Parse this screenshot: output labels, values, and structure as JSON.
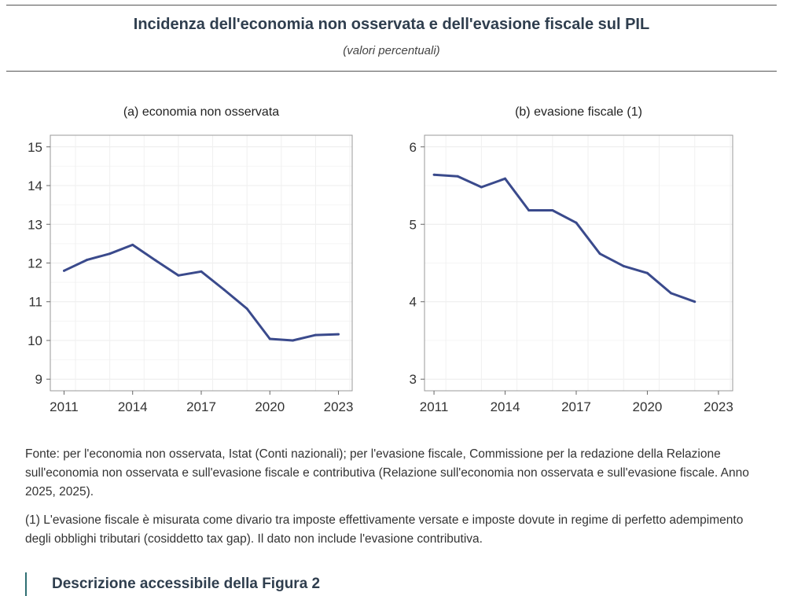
{
  "header": {
    "title": "Incidenza dell'economia non osservata e dell'evasione fiscale sul PIL",
    "subtitle": "(valori percentuali)"
  },
  "chart_data": [
    {
      "type": "line",
      "title": "(a) economia non osservata",
      "xlabel": "",
      "ylabel": "",
      "x": [
        2011,
        2012,
        2013,
        2014,
        2015,
        2016,
        2017,
        2018,
        2019,
        2020,
        2021,
        2022,
        2023
      ],
      "values": [
        11.8,
        12.08,
        12.24,
        12.47,
        12.07,
        11.68,
        11.78,
        11.31,
        10.82,
        10.04,
        10.0,
        10.14,
        10.16
      ],
      "ylim": [
        8.7,
        15.3
      ],
      "xlim": [
        2010.4,
        2023.6
      ],
      "yticks": [
        "9",
        "10",
        "11",
        "12",
        "13",
        "14",
        "15"
      ],
      "xticks": [
        "2011",
        "2014",
        "2017",
        "2020",
        "2023"
      ],
      "color": "#3a4a8c",
      "grid": true
    },
    {
      "type": "line",
      "title": "(b) evasione fiscale (1)",
      "xlabel": "",
      "ylabel": "",
      "x": [
        2011,
        2012,
        2013,
        2014,
        2015,
        2016,
        2017,
        2018,
        2019,
        2020,
        2021,
        2022
      ],
      "values": [
        5.64,
        5.62,
        5.48,
        5.59,
        5.18,
        5.18,
        5.02,
        4.62,
        4.46,
        4.37,
        4.11,
        4.0
      ],
      "ylim": [
        2.85,
        6.15
      ],
      "xlim": [
        2010.6,
        2023.6
      ],
      "yticks": [
        "3",
        "4",
        "5",
        "6"
      ],
      "xticks": [
        "2011",
        "2014",
        "2017",
        "2020",
        "2023"
      ],
      "color": "#3a4a8c",
      "grid": true
    }
  ],
  "notes": {
    "source": "Fonte: per l'economia non osservata, Istat (Conti nazionali); per l'evasione fiscale, Commissione per la redazione della Relazione sull'economia non osservata e sull'evasione fiscale e contributiva (Relazione sull'economia non osservata e sull'evasione fiscale. Anno 2025, 2025).",
    "footnote": "(1) L'evasione fiscale è misurata come divario tra imposte effettivamente versate e imposte dovute in regime di perfetto adempimento degli obblighi tributari (cosiddetto tax gap). Il dato non include l'evasione contributiva."
  },
  "accessible": {
    "label": "Descrizione accessibile della Figura 2"
  }
}
